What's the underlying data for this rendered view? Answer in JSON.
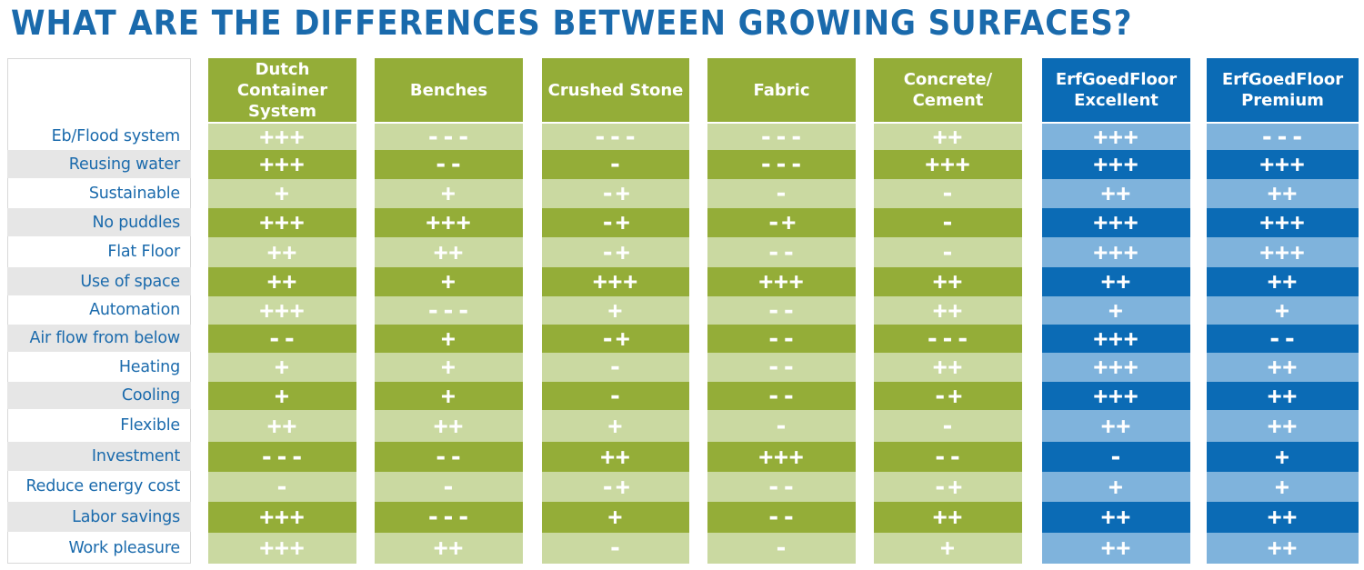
{
  "title": "WHAT ARE THE DIFFERENCES BETWEEN GROWING SURFACES?",
  "colors": {
    "title": "#1a6aac",
    "green_dark": "#94ad38",
    "green_light": "#cad9a1",
    "blue_dark": "#0b6bb5",
    "blue_light": "#7fb3dc",
    "label_text": "#1a6aac",
    "label_shade": "#e6e6e6"
  },
  "rows": [
    "Eb/Flood system",
    "Reusing water",
    "Sustainable",
    "No puddles",
    "Flat Floor",
    "Use of space",
    "Automation",
    "Air flow from below",
    "Heating",
    "Cooling",
    "Flexible",
    "Investment",
    "Reduce energy cost",
    "Labor savings",
    "Work pleasure"
  ],
  "columns": [
    {
      "header": "Dutch Container\nSystem",
      "theme": "green",
      "values": [
        "+++",
        "+++",
        "+",
        "+++",
        "++",
        "++",
        "+++",
        "--",
        "+",
        "+",
        "++",
        "---",
        "-",
        "+++",
        "+++"
      ]
    },
    {
      "header": "Benches",
      "theme": "green",
      "values": [
        "---",
        "--",
        "+",
        "+++",
        "++",
        "+",
        "---",
        "+",
        "+",
        "+",
        "++",
        "--",
        "-",
        "---",
        "++"
      ]
    },
    {
      "header": "Crushed Stone",
      "theme": "green",
      "values": [
        "---",
        "-",
        "-+",
        "-+",
        "-+",
        "+++",
        "+",
        "-+",
        "-",
        "-",
        "+",
        "++",
        "-+",
        "+",
        "-"
      ]
    },
    {
      "header": "Fabric",
      "theme": "green",
      "values": [
        "---",
        "---",
        "-",
        "-+",
        "--",
        "+++",
        "--",
        "--",
        "--",
        "--",
        "-",
        "+++",
        "--",
        "--",
        "-"
      ]
    },
    {
      "header": "Concrete/\nCement",
      "theme": "green",
      "values": [
        "++",
        "+++",
        "-",
        "-",
        "-",
        "++",
        "++",
        "---",
        "++",
        "-+",
        "-",
        "--",
        "-+",
        "++",
        "+"
      ]
    },
    {
      "header": "ErfGoedFloor\nExcellent",
      "theme": "blue",
      "values": [
        "+++",
        "+++",
        "++",
        "+++",
        "+++",
        "++",
        "+",
        "+++",
        "+++",
        "+++",
        "++",
        "-",
        "+",
        "++",
        "++"
      ]
    },
    {
      "header": "ErfGoedFloor\nPremium",
      "theme": "blue",
      "values": [
        "---",
        "+++",
        "++",
        "+++",
        "+++",
        "++",
        "+",
        "--",
        "++",
        "++",
        "++",
        "+",
        "+",
        "++",
        "++"
      ]
    }
  ]
}
